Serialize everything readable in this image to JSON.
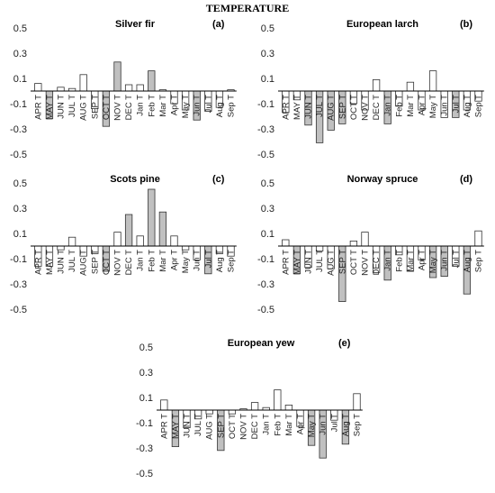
{
  "figure": {
    "title": "TEMPERATURE"
  },
  "chart_data": [
    {
      "type": "bar",
      "title": "Silver fir",
      "panel_label": "(a)",
      "ylim": [
        -0.5,
        0.5
      ],
      "yticks": [
        "0.5",
        "0.3",
        "0.1",
        "-0.1",
        "-0.3",
        "-0.5"
      ],
      "categories": [
        "APR T",
        "MAY T",
        "JUN T",
        "JUL T",
        "AUG T",
        "SEP T",
        "OCT T",
        "NOV T",
        "DEC T",
        "Jan T",
        "Feb T",
        "Mar T",
        "Apr T",
        "May T",
        "Jun T",
        "Jul T",
        "Aug T",
        "Sep T"
      ],
      "values": [
        0.06,
        -0.22,
        0.03,
        0.02,
        0.13,
        -0.14,
        -0.28,
        0.23,
        0.05,
        0.05,
        0.16,
        0.01,
        -0.1,
        -0.15,
        -0.23,
        -0.16,
        -0.13,
        0.01
      ],
      "significant": [
        false,
        true,
        false,
        false,
        false,
        false,
        true,
        true,
        false,
        false,
        true,
        false,
        false,
        false,
        true,
        false,
        false,
        false
      ]
    },
    {
      "type": "bar",
      "title": "European larch",
      "panel_label": "(b)",
      "ylim": [
        -0.5,
        0.5
      ],
      "yticks": [
        "0.5",
        "0.3",
        "0.1",
        "-0.1",
        "-0.3",
        "-0.5"
      ],
      "categories": [
        "APR T",
        "MAY T",
        "JUN T",
        "JUL T",
        "AUG T",
        "SEP T",
        "OCT T",
        "NOV T",
        "DEC T",
        "Jan T",
        "Feb T",
        "Mar T",
        "Apr T",
        "May T",
        "Jun T",
        "Jul T",
        "Aug T",
        "Sep T"
      ],
      "values": [
        -0.17,
        -0.07,
        -0.27,
        -0.41,
        -0.31,
        -0.26,
        -0.1,
        -0.15,
        0.09,
        -0.26,
        -0.12,
        0.07,
        -0.15,
        0.16,
        -0.21,
        -0.21,
        -0.15,
        -0.08
      ],
      "significant": [
        false,
        false,
        true,
        true,
        true,
        true,
        false,
        false,
        false,
        true,
        false,
        false,
        false,
        false,
        false,
        true,
        false,
        false
      ]
    },
    {
      "type": "bar",
      "title": "Scots pine",
      "panel_label": "(c)",
      "ylim": [
        -0.5,
        0.5
      ],
      "yticks": [
        "0.5",
        "0.3",
        "0.1",
        "-0.1",
        "-0.3",
        "-0.5"
      ],
      "categories": [
        "APR T",
        "MAY T",
        "JUN T",
        "JUL T",
        "AUG T",
        "SEP T",
        "OCT T",
        "NOV T",
        "DEC T",
        "Jan T",
        "Feb T",
        "Mar T",
        "Apr T",
        "May T",
        "Jun T",
        "Jul T",
        "Aug T",
        "Sep T"
      ],
      "values": [
        -0.16,
        -0.16,
        -0.03,
        0.07,
        -0.08,
        -0.06,
        -0.2,
        0.11,
        0.25,
        0.08,
        0.45,
        0.27,
        0.08,
        -0.03,
        -0.11,
        -0.22,
        -0.06,
        -0.08
      ],
      "significant": [
        false,
        false,
        false,
        false,
        false,
        false,
        true,
        false,
        true,
        false,
        true,
        true,
        false,
        false,
        false,
        true,
        false,
        false
      ]
    },
    {
      "type": "bar",
      "title": "Norway spruce",
      "panel_label": "(d)",
      "ylim": [
        -0.5,
        0.5
      ],
      "yticks": [
        "0.5",
        "0.3",
        "0.1",
        "-0.1",
        "-0.3",
        "-0.5"
      ],
      "categories": [
        "APR T",
        "MAY T",
        "JUN T",
        "JUL T",
        "AUG T",
        "SEP T",
        "OCT T",
        "NOV T",
        "DEC T",
        "Jan T",
        "Feb T",
        "Mar T",
        "Apr T",
        "May T",
        "Jun T",
        "Jul T",
        "Aug T",
        "Sep T"
      ],
      "values": [
        0.05,
        -0.22,
        -0.17,
        -0.04,
        -0.18,
        -0.44,
        0.04,
        0.11,
        -0.21,
        -0.27,
        -0.07,
        -0.2,
        -0.11,
        -0.25,
        -0.24,
        -0.16,
        -0.38,
        0.12
      ],
      "significant": [
        false,
        true,
        false,
        false,
        false,
        true,
        false,
        false,
        false,
        true,
        false,
        false,
        false,
        true,
        true,
        false,
        true,
        false
      ]
    },
    {
      "type": "bar",
      "title": "European yew",
      "panel_label": "(e)",
      "ylim": [
        -0.5,
        0.5
      ],
      "yticks": [
        "0.5",
        "0.3",
        "0.1",
        "-0.1",
        "-0.3",
        "-0.5"
      ],
      "categories": [
        "APR T",
        "MAY T",
        "JUN T",
        "JUL T",
        "AUG T",
        "SEP T",
        "OCT T",
        "NOV T",
        "DEC T",
        "Jan T",
        "Feb T",
        "Mar T",
        "Apr T",
        "May T",
        "Jun T",
        "Jul T",
        "Aug T",
        "Sep T"
      ],
      "values": [
        0.08,
        -0.29,
        -0.14,
        -0.07,
        -0.03,
        -0.32,
        -0.03,
        0.01,
        0.06,
        0.02,
        0.16,
        0.04,
        -0.13,
        -0.28,
        -0.38,
        -0.08,
        -0.27,
        0.13
      ],
      "significant": [
        false,
        true,
        false,
        false,
        false,
        true,
        false,
        false,
        false,
        false,
        false,
        false,
        false,
        true,
        true,
        false,
        true,
        false
      ]
    }
  ]
}
